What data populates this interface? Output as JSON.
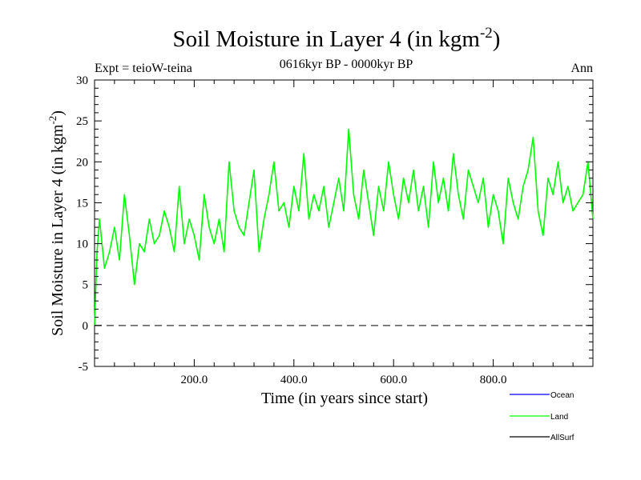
{
  "chart_data": {
    "type": "line",
    "title": "Soil Moisture in Layer 4 (in kgm",
    "title_sup": "-2",
    "title_close": ")",
    "subtitle": "0616kyr BP - 0000kyr BP",
    "expt_label": "Expt = teioW-teina",
    "season_label": "Ann",
    "xlabel": "Time (in years since start)",
    "ylabel": "Soil Moisture in Layer 4 (in kgm",
    "ylabel_sup": "-2",
    "ylabel_close": ")",
    "xlim": [
      0,
      1000
    ],
    "ylim": [
      -5,
      30
    ],
    "x_ticks": [
      200,
      400,
      600,
      800
    ],
    "x_tick_labels": [
      "200.0",
      "400.0",
      "600.0",
      "800.0"
    ],
    "y_ticks": [
      -5,
      0,
      5,
      10,
      15,
      20,
      25,
      30
    ],
    "y_tick_labels": [
      "-5",
      "0",
      "5",
      "10",
      "15",
      "20",
      "25",
      "30"
    ],
    "zero_line": 0,
    "legend": [
      {
        "name": "Ocean",
        "color": "#0000ff"
      },
      {
        "name": "Land",
        "color": "#00ff00"
      },
      {
        "name": "AllSurf",
        "color": "#000000"
      }
    ],
    "series": [
      {
        "name": "Land",
        "color": "#00ff00",
        "x": [
          0,
          5,
          10,
          20,
          30,
          40,
          50,
          60,
          70,
          80,
          90,
          100,
          110,
          120,
          130,
          140,
          150,
          160,
          170,
          180,
          190,
          200,
          210,
          220,
          230,
          240,
          250,
          260,
          270,
          280,
          290,
          300,
          310,
          320,
          330,
          340,
          350,
          360,
          370,
          380,
          390,
          400,
          410,
          420,
          430,
          440,
          450,
          460,
          470,
          480,
          490,
          500,
          510,
          520,
          530,
          540,
          550,
          560,
          570,
          580,
          590,
          600,
          610,
          620,
          630,
          640,
          650,
          660,
          670,
          680,
          690,
          700,
          710,
          720,
          730,
          740,
          750,
          760,
          770,
          780,
          790,
          800,
          810,
          820,
          830,
          840,
          850,
          860,
          870,
          880,
          890,
          900,
          910,
          920,
          930,
          940,
          950,
          960,
          970,
          980,
          990,
          1000
        ],
        "values": [
          0,
          9,
          13,
          7,
          9,
          12,
          8,
          16,
          11,
          5,
          10,
          9,
          13,
          10,
          11,
          14,
          12,
          9,
          17,
          10,
          13,
          11,
          8,
          16,
          12,
          10,
          13,
          9,
          20,
          14,
          12,
          11,
          15,
          19,
          9,
          13,
          16,
          20,
          14,
          15,
          12,
          17,
          14,
          21,
          13,
          16,
          14,
          17,
          12,
          15,
          18,
          14,
          24,
          16,
          13,
          19,
          15,
          11,
          17,
          14,
          20,
          16,
          13,
          18,
          15,
          19,
          14,
          17,
          12,
          20,
          15,
          18,
          14,
          21,
          16,
          13,
          19,
          17,
          15,
          18,
          12,
          16,
          14,
          10,
          18,
          15,
          13,
          17,
          19,
          23,
          14,
          11,
          18,
          16,
          20,
          15,
          17,
          14,
          15,
          16,
          20,
          13
        ]
      }
    ]
  }
}
